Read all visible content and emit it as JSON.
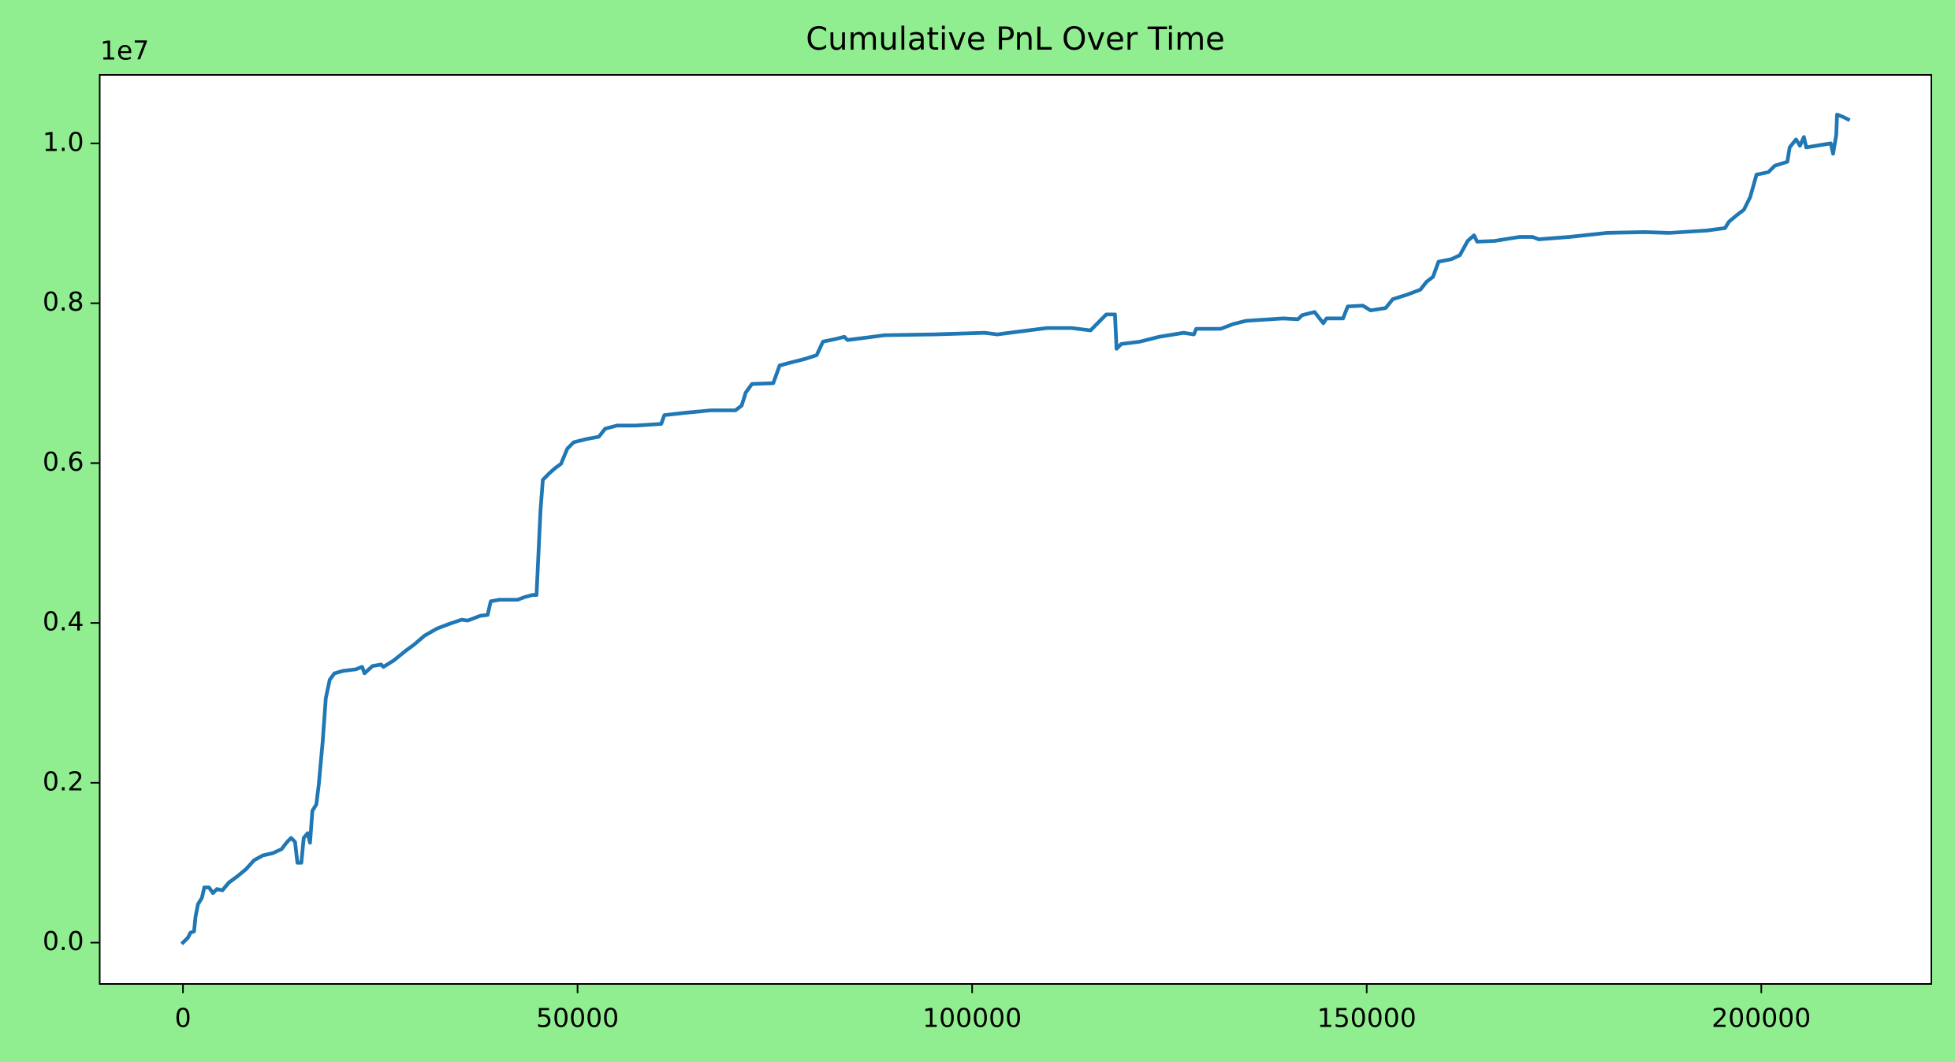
{
  "chart_data": {
    "type": "line",
    "title": "Cumulative PnL Over Time",
    "y_offset_label": "1e7",
    "x": [
      0,
      630,
      950,
      1400,
      1600,
      1900,
      2400,
      2700,
      3300,
      3800,
      4300,
      5000,
      5800,
      6900,
      8000,
      9000,
      10100,
      11400,
      12500,
      13200,
      13700,
      14200,
      14500,
      15000,
      15300,
      15800,
      16100,
      16400,
      16900,
      17200,
      17700,
      18100,
      18600,
      19200,
      20300,
      21900,
      22700,
      23000,
      24000,
      25100,
      25400,
      26700,
      28200,
      29300,
      30600,
      32200,
      33800,
      35300,
      36100,
      37700,
      38600,
      39000,
      40100,
      42400,
      43200,
      44300,
      44800,
      45000,
      45300,
      45600,
      46400,
      47200,
      47900,
      48700,
      49500,
      51100,
      52700,
      53500,
      55000,
      57400,
      60600,
      61000,
      63700,
      66900,
      70000,
      70800,
      71300,
      72100,
      74800,
      75600,
      76700,
      78700,
      80300,
      81100,
      82600,
      83800,
      84200,
      87400,
      88900,
      95300,
      101600,
      103200,
      105500,
      109500,
      112600,
      115000,
      116100,
      117000,
      118100,
      118300,
      118900,
      121300,
      123700,
      126800,
      128100,
      128400,
      131500,
      133100,
      134700,
      139400,
      141300,
      141800,
      143400,
      144500,
      144900,
      147000,
      147600,
      149500,
      150500,
      152400,
      153300,
      155200,
      156800,
      157600,
      158400,
      159100,
      160700,
      161800,
      162800,
      163600,
      164000,
      166200,
      169400,
      171000,
      171800,
      175700,
      180400,
      185200,
      188300,
      193100,
      195400,
      195900,
      197000,
      197800,
      198600,
      199400,
      200900,
      201700,
      203300,
      203600,
      204400,
      204900,
      205400,
      205700,
      208800,
      209100,
      209500,
      209600,
      210400,
      211000
    ],
    "series": [
      {
        "color": "#1f77b4",
        "values": [
          0,
          62000,
          125000,
          140000,
          330000,
          480000,
          560000,
          690000,
          690000,
          620000,
          670000,
          655000,
          750000,
          830000,
          920000,
          1030000,
          1090000,
          1120000,
          1170000,
          1260000,
          1310000,
          1260000,
          1000000,
          1000000,
          1310000,
          1370000,
          1250000,
          1650000,
          1730000,
          1970000,
          2510000,
          3060000,
          3290000,
          3370000,
          3400000,
          3420000,
          3450000,
          3370000,
          3460000,
          3480000,
          3450000,
          3530000,
          3650000,
          3730000,
          3840000,
          3930000,
          3990000,
          4040000,
          4030000,
          4090000,
          4100000,
          4270000,
          4290000,
          4290000,
          4320000,
          4350000,
          4350000,
          4770000,
          5400000,
          5790000,
          5870000,
          5940000,
          5990000,
          6180000,
          6260000,
          6300000,
          6330000,
          6430000,
          6470000,
          6470000,
          6490000,
          6600000,
          6630000,
          6660000,
          6660000,
          6720000,
          6880000,
          6990000,
          7000000,
          7220000,
          7250000,
          7300000,
          7350000,
          7520000,
          7550000,
          7580000,
          7540000,
          7580000,
          7600000,
          7610000,
          7630000,
          7610000,
          7640000,
          7690000,
          7690000,
          7660000,
          7770000,
          7860000,
          7860000,
          7430000,
          7490000,
          7520000,
          7580000,
          7630000,
          7610000,
          7680000,
          7680000,
          7740000,
          7780000,
          7810000,
          7800000,
          7850000,
          7890000,
          7750000,
          7810000,
          7810000,
          7960000,
          7970000,
          7910000,
          7940000,
          8050000,
          8110000,
          8170000,
          8270000,
          8330000,
          8520000,
          8550000,
          8600000,
          8780000,
          8850000,
          8770000,
          8780000,
          8830000,
          8830000,
          8800000,
          8830000,
          8880000,
          8890000,
          8880000,
          8910000,
          8940000,
          9020000,
          9110000,
          9170000,
          9330000,
          9610000,
          9640000,
          9720000,
          9770000,
          9950000,
          10050000,
          9970000,
          10080000,
          9950000,
          10000000,
          9870000,
          10110000,
          10360000,
          10330000,
          10300000
        ]
      }
    ],
    "xlim": [
      -10550,
      221550
    ],
    "ylim": [
      -517000,
      10857000
    ],
    "xticks": [
      0,
      50000,
      100000,
      150000,
      200000
    ],
    "yticks": [
      {
        "value": 0,
        "label": "0.0"
      },
      {
        "value": 2000000,
        "label": "0.2"
      },
      {
        "value": 4000000,
        "label": "0.4"
      },
      {
        "value": 6000000,
        "label": "0.6"
      },
      {
        "value": 8000000,
        "label": "0.8"
      },
      {
        "value": 10000000,
        "label": "1.0"
      }
    ],
    "grid": false
  }
}
